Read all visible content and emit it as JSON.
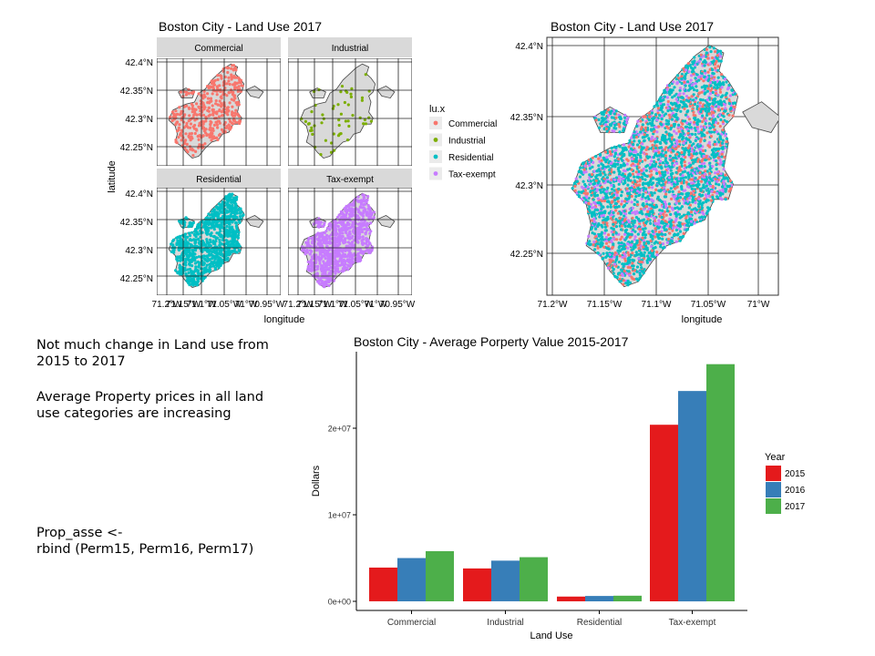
{
  "notes": {
    "note1": "Not much change in Land use from\n2015 to 2017",
    "note2": "Average Property prices in all land\nuse categories are increasing",
    "code": "Prop_asse <-\nrbind (Perm15, Perm16, Perm17)"
  },
  "colors": {
    "Commercial": "#f8766d",
    "Industrial": "#7cae00",
    "Residential": "#00bfc4",
    "Tax-exempt": "#c77cff",
    "2015": "#e41a1c",
    "2016": "#377eb8",
    "2017": "#4daf4a"
  },
  "chart_data": [
    {
      "type": "map",
      "title": "Boston City - Land Use 2017",
      "facets": [
        "Commercial",
        "Industrial",
        "Residential",
        "Tax-exempt"
      ],
      "xlabel": "longitude",
      "ylabel": "latitude",
      "x_ticks": [
        "71.2°W",
        "71.15°W",
        "71.1°W",
        "71.05°W",
        "71°W",
        "70.95°W"
      ],
      "y_ticks": [
        "42.4°N",
        "42.35°N",
        "42.3°N",
        "42.25°N"
      ],
      "legend_title": "lu.x",
      "legend": [
        "Commercial",
        "Industrial",
        "Residential",
        "Tax-exempt"
      ],
      "legend_position": "right"
    },
    {
      "type": "map",
      "title": "Boston City - Land Use 2017",
      "xlabel": "longitude",
      "x_ticks": [
        "71.2°W",
        "71.15°W",
        "71.1°W",
        "71.05°W",
        "71°W"
      ],
      "y_ticks": [
        "42.4°N",
        "42.35°N",
        "42.3°N",
        "42.25°N"
      ]
    },
    {
      "type": "bar",
      "title": "Boston City - Average Porperty Value 2015-2017",
      "xlabel": "Land Use",
      "ylabel": "Dollars",
      "categories": [
        "Commercial",
        "Industrial",
        "Residential",
        "Tax-exempt"
      ],
      "series": [
        {
          "name": "2015",
          "values": [
            3900000,
            3800000,
            550000,
            20400000
          ]
        },
        {
          "name": "2016",
          "values": [
            5000000,
            4700000,
            620000,
            24300000
          ]
        },
        {
          "name": "2017",
          "values": [
            5800000,
            5100000,
            650000,
            27400000
          ]
        }
      ],
      "y_ticks": [
        0,
        10000000,
        20000000
      ],
      "y_tick_labels": [
        "0e+00",
        "1e+07",
        "2e+07"
      ],
      "ylim": [
        -1000000,
        28500000
      ],
      "legend_title": "Year",
      "legend_position": "right",
      "grid": false
    }
  ]
}
